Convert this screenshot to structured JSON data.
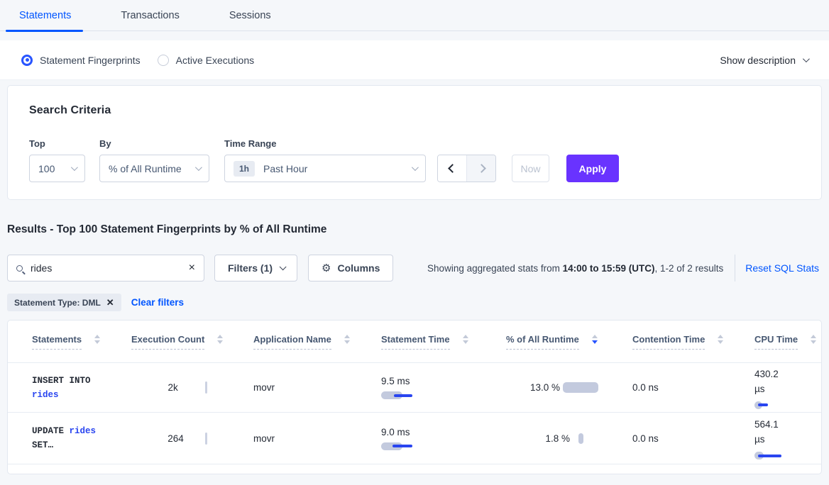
{
  "tabs": [
    {
      "label": "Statements",
      "active": true
    },
    {
      "label": "Transactions",
      "active": false
    },
    {
      "label": "Sessions",
      "active": false
    }
  ],
  "view_mode": {
    "options": [
      {
        "label": "Statement Fingerprints",
        "selected": true
      },
      {
        "label": "Active Executions",
        "selected": false
      }
    ],
    "show_description_label": "Show description"
  },
  "search_criteria": {
    "title": "Search Criteria",
    "top_label": "Top",
    "top_value": "100",
    "by_label": "By",
    "by_value": "% of All Runtime",
    "time_range_label": "Time Range",
    "time_badge": "1h",
    "time_value": "Past Hour",
    "now_label": "Now",
    "apply_label": "Apply"
  },
  "results": {
    "heading": "Results - Top 100 Statement Fingerprints by % of All Runtime",
    "search_value": "rides",
    "filters_label": "Filters (1)",
    "columns_label": "Columns",
    "showing_prefix": "Showing aggregated stats from ",
    "showing_bold": "14:00 to 15:59 (UTC)",
    "showing_suffix": ", 1-2 of 2 results",
    "reset_label": "Reset SQL Stats",
    "filter_pill": "Statement Type: DML",
    "clear_filters_label": "Clear filters"
  },
  "table": {
    "headers": [
      {
        "label": "Statements",
        "sort": "none"
      },
      {
        "label": "Execution Count",
        "sort": "none"
      },
      {
        "label": "Application Name",
        "sort": "none"
      },
      {
        "label": "Statement Time",
        "sort": "none"
      },
      {
        "label": "% of All Runtime",
        "sort": "desc"
      },
      {
        "label": "Contention Time",
        "sort": "none"
      },
      {
        "label": "CPU Time",
        "sort": "none"
      }
    ],
    "rows": [
      {
        "statement": [
          {
            "t": "INSERT INTO",
            "link": false,
            "nl": true
          },
          {
            "t": "rides",
            "link": true
          }
        ],
        "execution_count": "2k",
        "application_name": "movr",
        "statement_time": {
          "v": "9.5 ms",
          "bar": 30,
          "dash": [
            18,
            26
          ]
        },
        "runtime": {
          "v": "13.0 %",
          "bar": [
            50,
            15
          ]
        },
        "contention_time": "0.0 ns",
        "cpu_time": {
          "v": "430.2 µs",
          "bar": 11,
          "dash": [
            5,
            14
          ]
        }
      },
      {
        "statement": [
          {
            "t": "UPDATE ",
            "link": false
          },
          {
            "t": "rides",
            "link": true,
            "nl": true
          },
          {
            "t": "SET…",
            "link": false
          }
        ],
        "execution_count": "264",
        "application_name": "movr",
        "statement_time": {
          "v": "9.0 ms",
          "bar": 30,
          "dash": [
            16,
            28
          ]
        },
        "runtime": {
          "v": "1.8 %",
          "bar": [
            7,
            15
          ]
        },
        "contention_time": "0.0 ns",
        "cpu_time": {
          "v": "564.1 µs",
          "bar": 13,
          "dash": [
            5,
            33
          ]
        }
      }
    ]
  },
  "colors": {
    "accent_blue": "#0055ff",
    "apply_purple": "#6933ff",
    "bar_gray": "#c3cade",
    "bar_blue": "#2945f0"
  }
}
